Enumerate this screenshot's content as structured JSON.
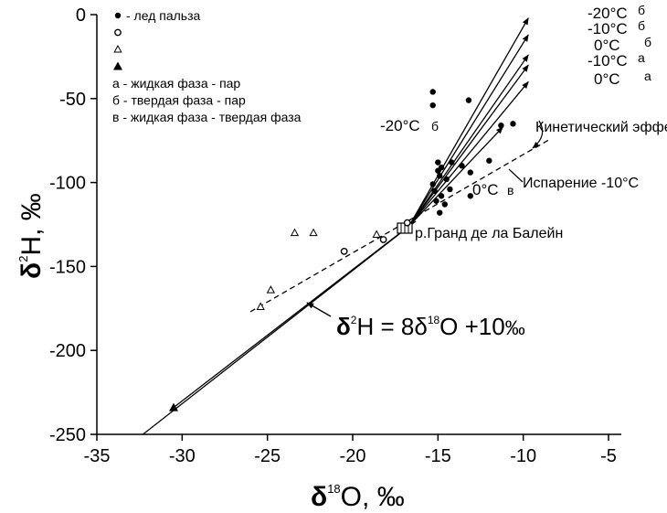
{
  "chart_data": {
    "type": "scatter",
    "title": "",
    "xlabel": {
      "main": "δ",
      "sup": "18",
      "rest": "O, ",
      "unit": "‰"
    },
    "ylabel": {
      "main": "δ",
      "sup": "2",
      "rest": "H, ",
      "unit": "‰"
    },
    "xlim": [
      -35,
      -5
    ],
    "ylim": [
      -250,
      0
    ],
    "x_ticks": [
      -35,
      -30,
      -25,
      -20,
      -15,
      -10,
      -5
    ],
    "y_ticks": [
      0,
      -50,
      -100,
      -150,
      -200,
      -250
    ],
    "legend": [
      {
        "marker": "filled-circle",
        "label": "- лед пальза"
      },
      {
        "marker": "open-circle",
        "label": ""
      },
      {
        "marker": "open-triangle",
        "label": ""
      },
      {
        "marker": "filled-triangle",
        "label": ""
      },
      {
        "marker": "none",
        "label": "а - жидкая фаза - пар"
      },
      {
        "marker": "none",
        "label": "б - твердая фаза - пар"
      },
      {
        "marker": "none",
        "label": "в - жидкая фаза - твердая фаза"
      }
    ],
    "series": [
      {
        "marker": "filled-circle",
        "points": [
          [
            -15.3,
            -46
          ],
          [
            -15.3,
            -54
          ],
          [
            -13.2,
            -51
          ],
          [
            -11.3,
            -66
          ],
          [
            -10.6,
            -65
          ],
          [
            -12,
            -87
          ],
          [
            -15,
            -88
          ],
          [
            -14.2,
            -88
          ],
          [
            -13.6,
            -90
          ],
          [
            -14.8,
            -91
          ],
          [
            -15,
            -93
          ],
          [
            -14.9,
            -96
          ],
          [
            -13.1,
            -94
          ],
          [
            -14.5,
            -98
          ],
          [
            -15.3,
            -101
          ],
          [
            -14.3,
            -104
          ],
          [
            -15.2,
            -105
          ],
          [
            -14.8,
            -108
          ],
          [
            -13.1,
            -108
          ],
          [
            -15.1,
            -111
          ],
          [
            -14.6,
            -113
          ],
          [
            -14.9,
            -118
          ]
        ]
      },
      {
        "marker": "open-circle",
        "points": [
          [
            -20.5,
            -141
          ],
          [
            -18.2,
            -134
          ],
          [
            -16.8,
            -124
          ]
        ]
      },
      {
        "marker": "open-triangle",
        "points": [
          [
            -23.4,
            -130
          ],
          [
            -22.3,
            -130
          ],
          [
            -18.6,
            -131
          ],
          [
            -24.8,
            -164
          ],
          [
            -25.4,
            -174
          ]
        ]
      },
      {
        "marker": "filled-triangle",
        "points": [
          [
            -30.5,
            -234
          ]
        ]
      }
    ],
    "lines": [
      {
        "name": "gmwl",
        "equation": {
          "lhs_main": "δ",
          "lhs_sup": "2",
          "lhs_rest": "H = 8δ",
          "rhs_sup": "18",
          "rhs_rest": "O +10",
          "unit": "‰"
        },
        "from": [
          -32.3,
          -250
        ],
        "to": [
          -16.3,
          -123
        ]
      },
      {
        "name": "evaporation",
        "label": "Испарение -10°С",
        "style": "dashed",
        "from": [
          -26,
          -177
        ],
        "to": [
          -8.4,
          -74
        ]
      }
    ],
    "vectors": [
      {
        "label": "-20°С",
        "phase": "б",
        "from": [
          -16.7,
          -126
        ],
        "to": [
          -9.7,
          -2
        ]
      },
      {
        "label": "-10°С",
        "phase": "б",
        "from": [
          -16.7,
          -126
        ],
        "to": [
          -9.7,
          -12
        ]
      },
      {
        "label": "0°С",
        "phase": "б",
        "from": [
          -16.7,
          -126
        ],
        "to": [
          -9.7,
          -24
        ]
      },
      {
        "label": "-10°С",
        "phase": "а",
        "from": [
          -16.7,
          -126
        ],
        "to": [
          -9.7,
          -30
        ]
      },
      {
        "label": "0°С",
        "phase": "а",
        "from": [
          -16.7,
          -126
        ],
        "to": [
          -9.7,
          -40
        ]
      },
      {
        "label": "-20°С",
        "phase": "б",
        "from": [
          -30.5,
          -234
        ],
        "to": [
          -16.7,
          -126
        ]
      },
      {
        "label": "0°С",
        "phase": "в",
        "from": [
          -16.7,
          -126
        ],
        "to": [
          -11.2,
          -67
        ]
      }
    ],
    "annotations": {
      "kinetic": "Кинетический эффект",
      "river": "р.Гранд де ла Балейн"
    }
  }
}
